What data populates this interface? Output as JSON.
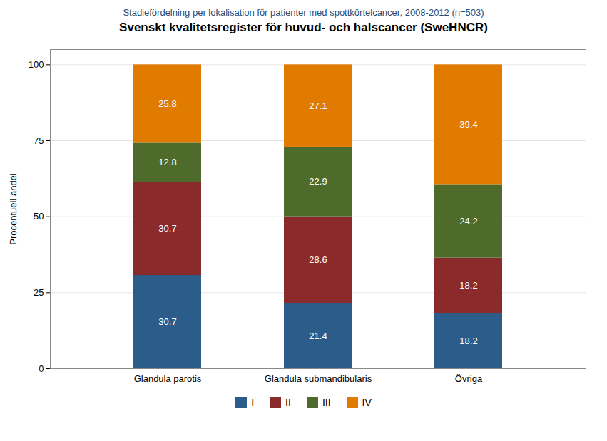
{
  "chart_data": {
    "type": "bar",
    "title": "Svenskt kvalitetsregister för huvud- och halscancer (SweHNCR)",
    "subtitle": "Stadiefördelning per lokalisation för patienter med spottkörtelcancer, 2008-2012 (n=503)",
    "ylabel": "Procentuell andel",
    "categories": [
      "Glandula parotis",
      "Glandula submandibularis",
      "Övriga"
    ],
    "series": [
      {
        "name": "I",
        "color": "#2b5c8a",
        "values": [
          30.7,
          21.4,
          18.2
        ]
      },
      {
        "name": "II",
        "color": "#8b2a2a",
        "values": [
          30.7,
          28.6,
          18.2
        ]
      },
      {
        "name": "III",
        "color": "#4f6b2c",
        "values": [
          12.8,
          22.9,
          24.2
        ]
      },
      {
        "name": "IV",
        "color": "#e07b00",
        "values": [
          25.8,
          27.1,
          39.4
        ]
      }
    ],
    "stacked": true,
    "data_labels": true,
    "ylim": [
      0,
      105
    ],
    "yticks": [
      0,
      25,
      50,
      75,
      100
    ],
    "grid": true,
    "legend": "bottom"
  }
}
